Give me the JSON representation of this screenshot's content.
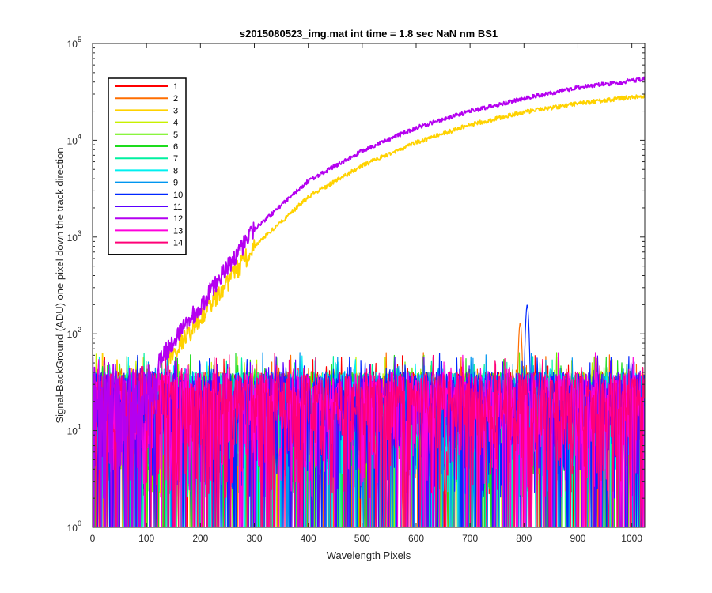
{
  "chart_data": {
    "type": "line",
    "title": "s2015080523_img.mat int time = 1.8 sec  NaN nm BS1",
    "xlabel": "Wavelength Pixels",
    "ylabel": "Signal-BackGround (ADU) one pixel down the track direction",
    "xlim": [
      0,
      1024
    ],
    "ylim": [
      1,
      100000
    ],
    "yscale": "log",
    "grid": false,
    "legend_position": "top-left",
    "x_ticks": [
      "0",
      "100",
      "200",
      "300",
      "400",
      "500",
      "600",
      "700",
      "800",
      "900",
      "1000"
    ],
    "y_ticks": [
      {
        "base": "10",
        "exp": "0",
        "value": 1
      },
      {
        "base": "10",
        "exp": "1",
        "value": 10
      },
      {
        "base": "10",
        "exp": "2",
        "value": 100
      },
      {
        "base": "10",
        "exp": "3",
        "value": 1000
      },
      {
        "base": "10",
        "exp": "4",
        "value": 10000
      },
      {
        "base": "10",
        "exp": "5",
        "value": 100000
      }
    ],
    "series": [
      {
        "name": "1",
        "color": "#ff0000",
        "kind": "noise",
        "noise_level": 25
      },
      {
        "name": "2",
        "color": "#ff6e00",
        "kind": "noise",
        "noise_level": 25,
        "peak": {
          "x": 793,
          "y": 130
        }
      },
      {
        "name": "3",
        "color": "#ffd200",
        "kind": "signal",
        "points": [
          [
            140,
            55
          ],
          [
            200,
            150
          ],
          [
            300,
            800
          ],
          [
            400,
            2600
          ],
          [
            500,
            5500
          ],
          [
            600,
            9500
          ],
          [
            700,
            14500
          ],
          [
            800,
            19500
          ],
          [
            900,
            24000
          ],
          [
            1024,
            29000
          ]
        ]
      },
      {
        "name": "4",
        "color": "#c8f000",
        "kind": "noise",
        "noise_level": 25
      },
      {
        "name": "5",
        "color": "#64f000",
        "kind": "noise",
        "noise_level": 25
      },
      {
        "name": "6",
        "color": "#1edc1e",
        "kind": "noise",
        "noise_level": 25
      },
      {
        "name": "7",
        "color": "#00f0a0",
        "kind": "noise",
        "noise_level": 25
      },
      {
        "name": "8",
        "color": "#00f0f0",
        "kind": "noise",
        "noise_level": 25
      },
      {
        "name": "9",
        "color": "#0096f0",
        "kind": "noise",
        "noise_level": 25
      },
      {
        "name": "10",
        "color": "#0028ff",
        "kind": "noise",
        "noise_level": 25,
        "peak": {
          "x": 806,
          "y": 200
        }
      },
      {
        "name": "11",
        "color": "#5a00ff",
        "kind": "noise",
        "noise_level": 25
      },
      {
        "name": "12",
        "color": "#b400f0",
        "kind": "signal",
        "points": [
          [
            120,
            50
          ],
          [
            200,
            200
          ],
          [
            300,
            1200
          ],
          [
            400,
            3800
          ],
          [
            500,
            7800
          ],
          [
            600,
            13500
          ],
          [
            700,
            20000
          ],
          [
            800,
            27000
          ],
          [
            900,
            35000
          ],
          [
            1024,
            43000
          ]
        ]
      },
      {
        "name": "13",
        "color": "#ff00dc",
        "kind": "noise",
        "noise_level": 25
      },
      {
        "name": "14",
        "color": "#ff0078",
        "kind": "noise",
        "noise_level": 25
      }
    ]
  }
}
